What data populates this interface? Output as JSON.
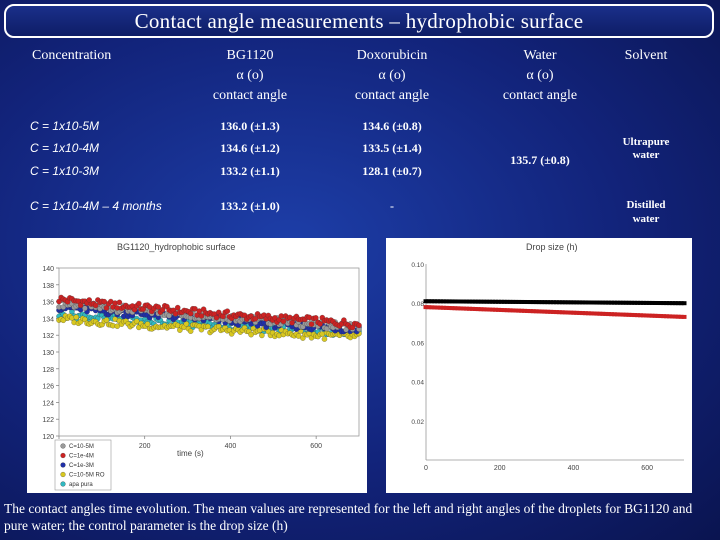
{
  "slide": {
    "title": "Contact angle measurements – hydrophobic surface",
    "caption": "The contact angles time evolution. The mean values are represented for the left and right angles of the droplets for BG1120 and pure water; the control parameter is the drop size (h)"
  },
  "table": {
    "headers": {
      "concentration": "Concentration",
      "bg1120": [
        "BG1120",
        "α (o)",
        "contact angle"
      ],
      "doxorubicin": [
        "Doxorubicin",
        "α (o)",
        "contact angle"
      ],
      "water": [
        "Water",
        "α (o)",
        "contact angle"
      ],
      "solvent": "Solvent"
    },
    "rows": [
      {
        "conc": "C = 1x10-5M",
        "bg": "136.0 (±1.3)",
        "dox": "134.6 (±0.8)"
      },
      {
        "conc": "C = 1x10-4M",
        "bg": "134.6 (±1.2)",
        "dox": "133.5 (±1.4)"
      },
      {
        "conc": "C = 1x10-3M",
        "bg": "133.2 (±1.1)",
        "dox": "128.1 (±0.7)"
      },
      {
        "conc": "C = 1x10-4M – 4 months",
        "bg": "133.2 (±1.0)",
        "dox": "-"
      }
    ],
    "water_value": "135.7 (±0.8)",
    "solvent_1": [
      "Ultrapure",
      "water"
    ],
    "solvent_2": [
      "Distilled",
      "water"
    ]
  },
  "chart_data": [
    {
      "type": "scatter",
      "title": "BG1120_hydrophobic surface",
      "xlabel": "time (s)",
      "xlim": [
        0,
        700
      ],
      "ylim": [
        120,
        140
      ],
      "xticks": [
        0,
        200,
        400,
        600
      ],
      "yticks": [
        120,
        122,
        124,
        126,
        128,
        130,
        132,
        134,
        136,
        138,
        140
      ],
      "legend": [
        "C=10-5M",
        "C=1e-4M",
        "C=1e-3M",
        "C=10-5M RO",
        "apa pura"
      ],
      "colors": [
        "#9a9a9a",
        "#cc2222",
        "#1f2fa8",
        "#d8c820",
        "#30b8c0"
      ],
      "series": [
        {
          "name": "C=10-5M",
          "x": [
            0,
            100,
            200,
            300,
            400,
            500,
            600,
            700
          ],
          "y": [
            135.8,
            135.3,
            134.9,
            134.5,
            134.1,
            133.7,
            133.3,
            133.0
          ]
        },
        {
          "name": "C=1e-4M",
          "x": [
            0,
            100,
            200,
            300,
            400,
            500,
            600,
            700
          ],
          "y": [
            136.3,
            135.7,
            135.3,
            134.8,
            134.4,
            134.0,
            133.7,
            133.3
          ]
        },
        {
          "name": "C=1e-3M",
          "x": [
            0,
            100,
            200,
            300,
            400,
            500,
            600,
            700
          ],
          "y": [
            135.4,
            134.9,
            134.5,
            134.1,
            133.7,
            133.3,
            133.0,
            132.7
          ]
        },
        {
          "name": "C=10-5M RO",
          "x": [
            0,
            100,
            200,
            300,
            400,
            500,
            600,
            700
          ],
          "y": [
            134.0,
            133.6,
            133.2,
            132.9,
            132.6,
            132.3,
            132.0,
            131.8
          ]
        },
        {
          "name": "apa pura",
          "x": [
            0,
            100,
            200,
            300,
            400,
            500,
            600,
            700
          ],
          "y": [
            134.5,
            134.1,
            133.7,
            133.4,
            133.1,
            132.8,
            132.5,
            132.3
          ]
        }
      ]
    },
    {
      "type": "line",
      "title": "Drop size (h)",
      "xlim": [
        0,
        700
      ],
      "ylim": [
        0,
        0.1
      ],
      "xticks": [
        0,
        200,
        400,
        600
      ],
      "yticks": [
        0.02,
        0.04,
        0.06,
        0.08,
        0.1
      ],
      "ytick_labels": [
        "0.02",
        "0.04",
        "0.06",
        "0.08",
        "0.10"
      ],
      "colors": [
        "#000000",
        "#cc2222"
      ],
      "series": [
        {
          "x": [
            0,
            700
          ],
          "y": [
            0.081,
            0.08
          ]
        },
        {
          "x": [
            0,
            700
          ],
          "y": [
            0.078,
            0.073
          ]
        }
      ]
    }
  ]
}
